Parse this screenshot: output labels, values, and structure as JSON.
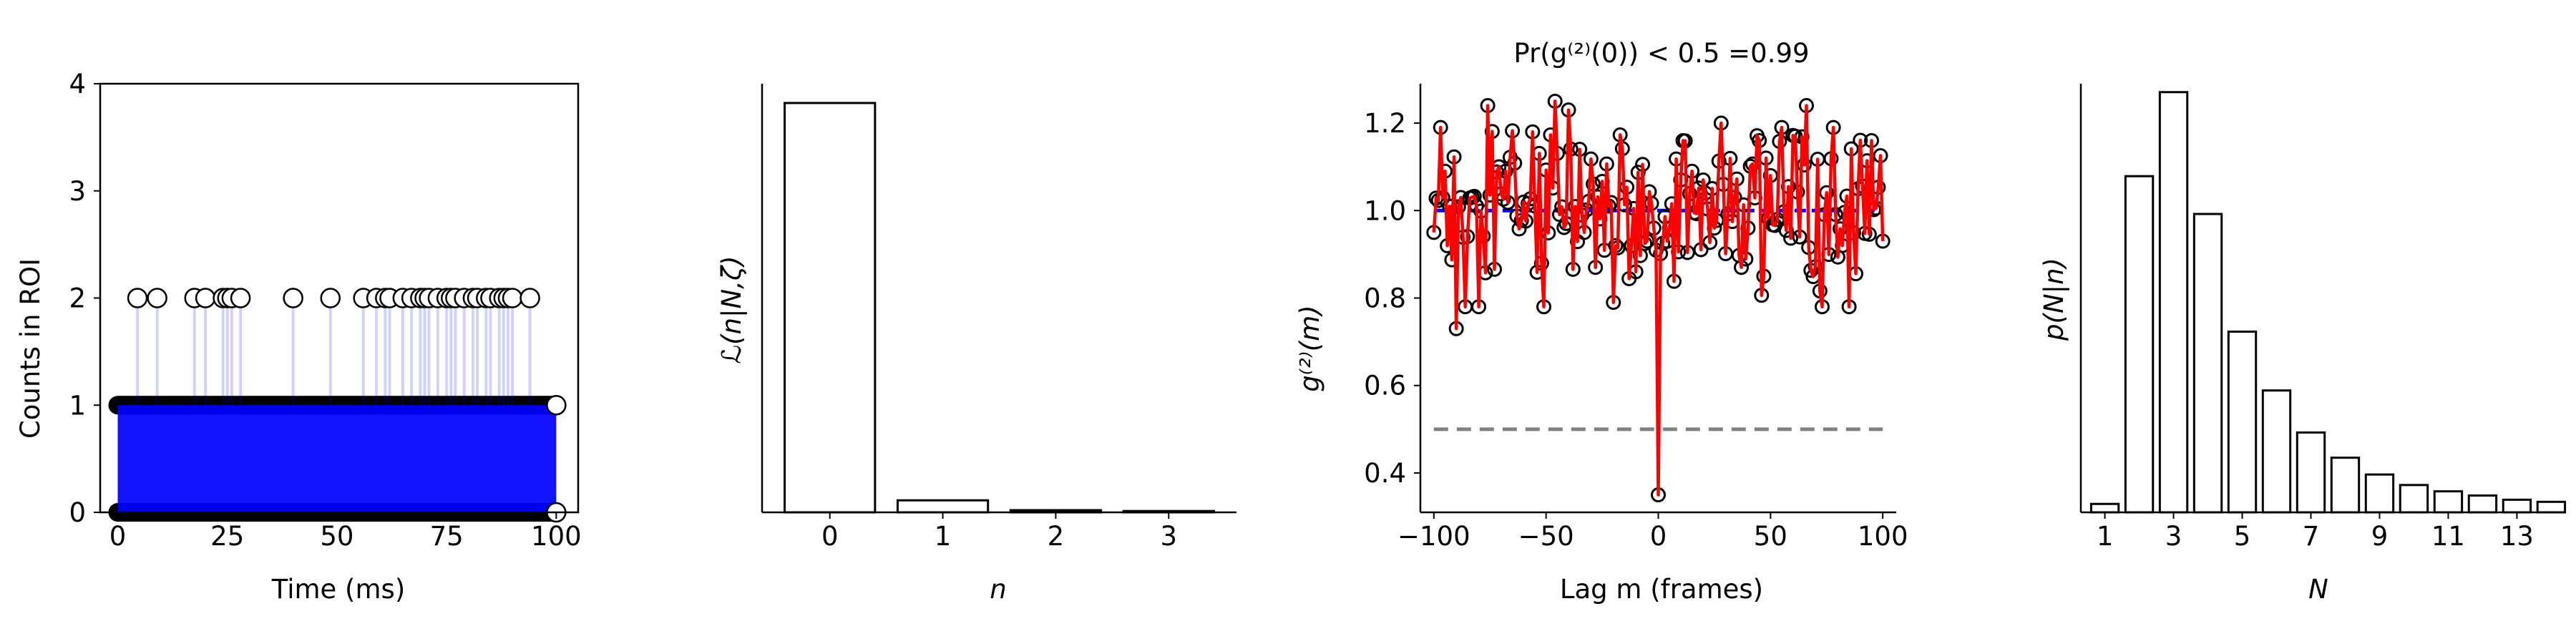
{
  "chart_data": [
    {
      "type": "scatter",
      "xlabel": "Time (ms)",
      "ylabel": "Counts in ROI",
      "xlim": [
        -4,
        105
      ],
      "ylim": [
        0,
        4
      ],
      "xticks": [
        0,
        25,
        50,
        75,
        100
      ],
      "yticks": [
        0,
        1,
        2,
        3,
        4
      ],
      "points_at_2_ms": [
        4.5,
        9,
        17.5,
        20,
        24,
        25,
        26,
        28,
        40,
        48.5,
        56,
        59,
        61,
        62,
        65,
        67,
        69,
        70,
        71,
        73,
        75,
        76,
        77,
        79,
        81,
        82,
        84,
        85,
        87,
        88,
        89,
        90,
        94
      ],
      "points_at_1_ms": "dense 0–100",
      "points_at_0_ms": "dense 0–100",
      "spine_style": "box",
      "colors": {
        "lines": "#0000ff",
        "markers": "#000000"
      }
    },
    {
      "type": "bar",
      "xlabel": "n",
      "ylabel": "ℒ(n|N,ζ)",
      "categories": [
        "0",
        "1",
        "2",
        "3"
      ],
      "values": [
        0.955,
        0.028,
        0.005,
        0.003
      ],
      "ylim": [
        0,
        1.0
      ],
      "ytick_labels": false
    },
    {
      "type": "line",
      "title": "Pr(g⁽²⁾(0)) < 0.5 =0.99",
      "xlabel": "Lag m (frames)",
      "ylabel": "g⁽²⁾(m)",
      "xlim": [
        -106,
        106
      ],
      "ylim": [
        0.31,
        1.29
      ],
      "xticks": [
        -100,
        -50,
        0,
        50,
        100
      ],
      "yticks": [
        0.4,
        0.6,
        0.8,
        1.0,
        1.2
      ],
      "series": [
        {
          "values": "g2 at lags -100..100 (about 0.73–1.25, dip 0.35 at lag 0)",
          "color": "#ff0000"
        },
        {
          "values": "1.0 baseline at lags -100..100",
          "color": "#0000ff"
        },
        {
          "values": "0.5 threshold, dashed",
          "color": "#808080"
        }
      ],
      "g2_samples": [
        {
          "x": -100,
          "y": 0.95
        },
        {
          "x": -97,
          "y": 1.19
        },
        {
          "x": -95,
          "y": 1.09
        },
        {
          "x": -90,
          "y": 0.73
        },
        {
          "x": -86,
          "y": 0.78
        },
        {
          "x": -80,
          "y": 0.78
        },
        {
          "x": -76,
          "y": 1.24
        },
        {
          "x": -68,
          "y": 1.09
        },
        {
          "x": -56,
          "y": 1.18
        },
        {
          "x": -51,
          "y": 0.78
        },
        {
          "x": -46,
          "y": 1.25
        },
        {
          "x": -40,
          "y": 1.23
        },
        {
          "x": -35,
          "y": 1.14
        },
        {
          "x": -28,
          "y": 0.87
        },
        {
          "x": -20,
          "y": 0.79
        },
        {
          "x": -10,
          "y": 0.86
        },
        {
          "x": -5,
          "y": 0.93
        },
        {
          "x": 0,
          "y": 0.35
        },
        {
          "x": 5,
          "y": 0.96
        },
        {
          "x": 10,
          "y": 1.07
        },
        {
          "x": 15,
          "y": 1.09
        },
        {
          "x": 20,
          "y": 1.07
        },
        {
          "x": 25,
          "y": 0.96
        },
        {
          "x": 28,
          "y": 1.2
        },
        {
          "x": 34,
          "y": 1.03
        },
        {
          "x": 40,
          "y": 0.96
        },
        {
          "x": 45,
          "y": 1.16
        },
        {
          "x": 50,
          "y": 1.08
        },
        {
          "x": 55,
          "y": 1.19
        },
        {
          "x": 61,
          "y": 1.17
        },
        {
          "x": 66,
          "y": 1.24
        },
        {
          "x": 73,
          "y": 0.78
        },
        {
          "x": 78,
          "y": 1.19
        },
        {
          "x": 82,
          "y": 0.92
        },
        {
          "x": 85,
          "y": 0.78
        },
        {
          "x": 89,
          "y": 1.05
        },
        {
          "x": 95,
          "y": 1.16
        },
        {
          "x": 100,
          "y": 0.93
        }
      ]
    },
    {
      "type": "bar",
      "xlabel": "N",
      "ylabel": "p(N|n)",
      "categories": [
        "1",
        "2",
        "3",
        "4",
        "5",
        "6",
        "7",
        "8",
        "9",
        "10",
        "11",
        "12",
        "13",
        "14"
      ],
      "values": [
        0.02,
        0.8,
        1.0,
        0.71,
        0.43,
        0.29,
        0.19,
        0.13,
        0.09,
        0.065,
        0.05,
        0.04,
        0.03,
        0.025
      ],
      "xtick_labels": [
        "1",
        "3",
        "5",
        "7",
        "9",
        "11",
        "13"
      ],
      "ytick_labels": false
    }
  ]
}
